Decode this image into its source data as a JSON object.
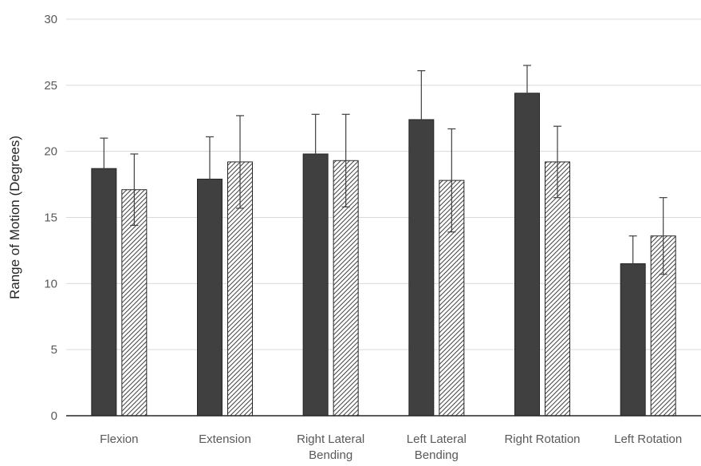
{
  "chart_data": {
    "type": "bar",
    "title": "",
    "xlabel": "",
    "ylabel": "Range of Motion (Degrees)",
    "ylim": [
      0,
      30
    ],
    "yticks": [
      0,
      5,
      10,
      15,
      20,
      25,
      30
    ],
    "grid": true,
    "legend": "none",
    "categories": [
      [
        "Flexion"
      ],
      [
        "Extension"
      ],
      [
        "Right Lateral",
        "Bending"
      ],
      [
        "Left Lateral",
        "Bending"
      ],
      [
        "Right Rotation"
      ],
      [
        "Left Rotation"
      ]
    ],
    "series": [
      {
        "values": [
          18.7,
          17.9,
          19.8,
          22.4,
          24.4,
          11.5
        ],
        "errors": [
          2.3,
          3.2,
          3.0,
          3.7,
          2.1,
          2.1
        ],
        "color": "#404040",
        "pattern": "solid"
      },
      {
        "values": [
          17.1,
          19.2,
          19.3,
          17.8,
          19.2,
          13.6
        ],
        "errors": [
          2.7,
          3.5,
          3.5,
          3.9,
          2.7,
          2.9
        ],
        "color": "#404040",
        "pattern": "hatched"
      }
    ]
  }
}
